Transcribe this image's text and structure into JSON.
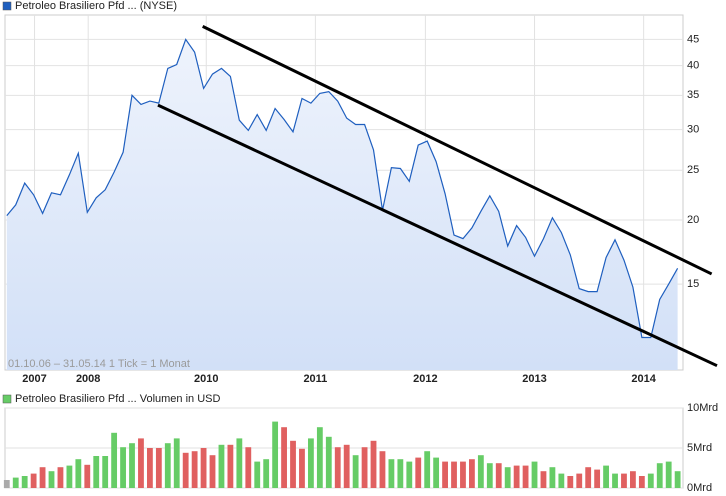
{
  "chart_data": [
    {
      "type": "area",
      "title": "Petroleo Brasiliero Pfd ... (NYSE)",
      "note": "01.10.06 – 31.05.14   1 Tick = 1 Monat",
      "color": "#1f5fbf",
      "log_scale": true,
      "grid": true,
      "x": [
        0,
        1,
        2,
        3,
        4,
        5,
        6,
        7,
        8,
        9,
        10,
        11,
        12,
        13,
        14,
        15,
        16,
        17,
        18,
        19,
        20,
        21,
        22,
        23,
        24,
        25,
        26,
        27,
        28,
        29,
        30,
        31,
        32,
        33,
        34,
        35,
        36,
        37,
        38,
        39,
        40,
        41,
        42,
        43,
        44,
        45,
        46,
        47,
        48,
        49,
        50,
        51,
        52,
        53,
        54,
        55,
        56,
        57,
        58,
        59,
        60,
        61,
        62,
        63,
        64,
        65,
        66,
        67,
        68,
        69,
        70,
        71,
        72,
        73,
        74,
        75
      ],
      "values": [
        20.4,
        21.4,
        23.6,
        22.4,
        20.6,
        22.6,
        22.4,
        24.5,
        27.0,
        20.7,
        22.1,
        22.9,
        24.8,
        27.1,
        35.0,
        33.6,
        34.1,
        33.8,
        39.5,
        40.2,
        45.0,
        42.5,
        36.1,
        38.5,
        39.5,
        38.1,
        31.3,
        29.9,
        32.1,
        29.9,
        33.0,
        31.4,
        29.7,
        34.5,
        33.8,
        35.3,
        35.6,
        34.1,
        31.6,
        30.7,
        30.7,
        27.4,
        20.9,
        25.3,
        25.2,
        23.8,
        28.0,
        28.5,
        26.0,
        22.5,
        18.7,
        18.4,
        19.3,
        20.8,
        22.3,
        20.8,
        17.8,
        19.5,
        18.5,
        17.0,
        18.4,
        20.2,
        18.9,
        17.1,
        14.7,
        14.5,
        14.5,
        16.9,
        18.3,
        16.7,
        14.8,
        11.8,
        11.8,
        14.0,
        15.0,
        16.1
      ],
      "xlim": [
        -0.2,
        75.6
      ],
      "xticks": [
        {
          "value": 3.1,
          "label": "2007"
        },
        {
          "value": 9.1,
          "label": "2008"
        },
        {
          "value": 22.3,
          "label": "2010"
        },
        {
          "value": 34.5,
          "label": "2011"
        },
        {
          "value": 46.8,
          "label": "2012"
        },
        {
          "value": 59.0,
          "label": "2013"
        },
        {
          "value": 71.2,
          "label": "2014"
        }
      ],
      "ylim": [
        10.2,
        50.2
      ],
      "yticks": [
        15,
        20,
        25,
        30,
        35,
        40,
        45
      ],
      "trendlines": [
        {
          "x": [
            21.9,
            78.8
          ],
          "y": [
            47.7,
            15.7
          ]
        },
        {
          "x": [
            16.9,
            79.4
          ],
          "y": [
            33.5,
            10.4
          ]
        }
      ]
    },
    {
      "type": "bar",
      "title": "Petroleo Brasiliero Pfd ... Volumen in USD",
      "color": "#66cc66",
      "grid": true,
      "x": [
        0,
        1,
        2,
        3,
        4,
        5,
        6,
        7,
        8,
        9,
        10,
        11,
        12,
        13,
        14,
        15,
        16,
        17,
        18,
        19,
        20,
        21,
        22,
        23,
        24,
        25,
        26,
        27,
        28,
        29,
        30,
        31,
        32,
        33,
        34,
        35,
        36,
        37,
        38,
        39,
        40,
        41,
        42,
        43,
        44,
        45,
        46,
        47,
        48,
        49,
        50,
        51,
        52,
        53,
        54,
        55,
        56,
        57,
        58,
        59,
        60,
        61,
        62,
        63,
        64,
        65,
        66,
        67,
        68,
        69,
        70,
        71,
        72,
        73,
        74,
        75
      ],
      "values": [
        1.0,
        1.3,
        1.5,
        1.8,
        2.6,
        2.1,
        2.6,
        2.8,
        3.6,
        2.9,
        4.0,
        4.0,
        6.9,
        5.1,
        5.6,
        6.2,
        5.0,
        5.0,
        5.6,
        6.2,
        4.4,
        4.6,
        5.0,
        4.1,
        5.4,
        5.4,
        6.2,
        5.1,
        3.3,
        3.6,
        8.3,
        7.6,
        5.9,
        4.9,
        6.2,
        7.6,
        6.4,
        5.1,
        5.4,
        4.1,
        5.1,
        5.9,
        4.6,
        3.6,
        3.6,
        3.3,
        3.8,
        4.6,
        3.8,
        3.3,
        3.3,
        3.3,
        3.6,
        4.1,
        3.1,
        3.1,
        2.6,
        2.8,
        2.8,
        3.3,
        2.1,
        2.6,
        1.8,
        1.5,
        1.8,
        2.6,
        2.3,
        2.8,
        1.8,
        1.8,
        2.1,
        1.5,
        1.8,
        3.1,
        3.3,
        2.1
      ],
      "colors": [
        "#aaaaaa",
        "#66cc66",
        "#66cc66",
        "#e06060",
        "#e06060",
        "#66cc66",
        "#e06060",
        "#66cc66",
        "#66cc66",
        "#e06060",
        "#66cc66",
        "#66cc66",
        "#66cc66",
        "#66cc66",
        "#66cc66",
        "#e06060",
        "#e06060",
        "#e06060",
        "#66cc66",
        "#66cc66",
        "#e06060",
        "#e06060",
        "#e06060",
        "#e06060",
        "#66cc66",
        "#e06060",
        "#66cc66",
        "#e06060",
        "#66cc66",
        "#66cc66",
        "#66cc66",
        "#e06060",
        "#e06060",
        "#e06060",
        "#66cc66",
        "#66cc66",
        "#66cc66",
        "#e06060",
        "#e06060",
        "#66cc66",
        "#e06060",
        "#e06060",
        "#e06060",
        "#66cc66",
        "#66cc66",
        "#66cc66",
        "#e06060",
        "#66cc66",
        "#66cc66",
        "#e06060",
        "#e06060",
        "#e06060",
        "#e06060",
        "#66cc66",
        "#66cc66",
        "#e06060",
        "#66cc66",
        "#e06060",
        "#e06060",
        "#66cc66",
        "#e06060",
        "#66cc66",
        "#66cc66",
        "#e06060",
        "#e06060",
        "#e06060",
        "#e06060",
        "#66cc66",
        "#66cc66",
        "#e06060",
        "#e06060",
        "#e06060",
        "#66cc66",
        "#66cc66",
        "#66cc66",
        "#66cc66"
      ],
      "xlim": [
        -0.2,
        75.6
      ],
      "ylim": [
        0,
        10
      ],
      "yticks": [
        {
          "value": 0,
          "label": "0Mrd"
        },
        {
          "value": 5,
          "label": "5Mrd"
        },
        {
          "value": 10,
          "label": "10Mrd"
        }
      ]
    }
  ]
}
